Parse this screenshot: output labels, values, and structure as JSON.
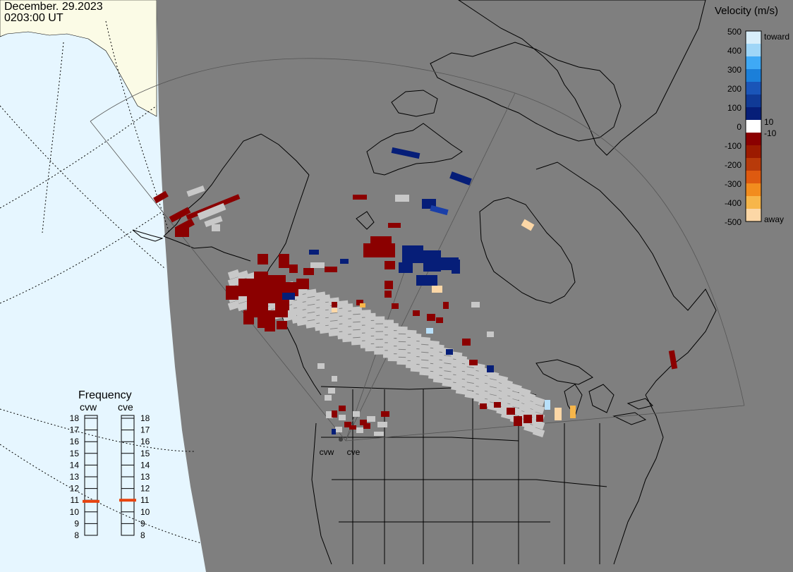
{
  "header": {
    "date": "December. 29.2023",
    "time": "0203:00 UT"
  },
  "colorbar": {
    "title": "Velocity (m/s)",
    "ticks": [
      "500",
      "400",
      "300",
      "200",
      "100",
      "0",
      "-100",
      "-200",
      "-300",
      "-400",
      "-500"
    ],
    "inner_labels": [
      "10",
      "-10"
    ],
    "toward_label": "toward",
    "away_label": "away",
    "colors": [
      "#d8eefa",
      "#9fd6f7",
      "#3fa9f5",
      "#1b7fd9",
      "#1a55b8",
      "#103a96",
      "#061e78",
      "#ffffff",
      "#8b0000",
      "#9c1a00",
      "#b83a0a",
      "#de5a10",
      "#f28c1e",
      "#f7b64a",
      "#fcd7a6"
    ]
  },
  "frequency": {
    "title": "Frequency",
    "radars": [
      {
        "name": "cvw",
        "value_mhz": 10.9
      },
      {
        "name": "cve",
        "value_mhz": 11.0
      }
    ],
    "scale": [
      "18",
      "17",
      "16",
      "15",
      "14",
      "13",
      "12",
      "11",
      "10",
      "9",
      "8"
    ],
    "range": [
      8,
      18
    ],
    "marker_color": "#e8430f"
  },
  "map": {
    "ocean_color": "#e6f6ff",
    "sunlit_land_color": "#fbfbe6",
    "night_color": "#7f7f7f",
    "ground_scatter_color": "#c8c8c8",
    "radar_sites": [
      {
        "name": "cvw"
      },
      {
        "name": "cve"
      }
    ]
  }
}
